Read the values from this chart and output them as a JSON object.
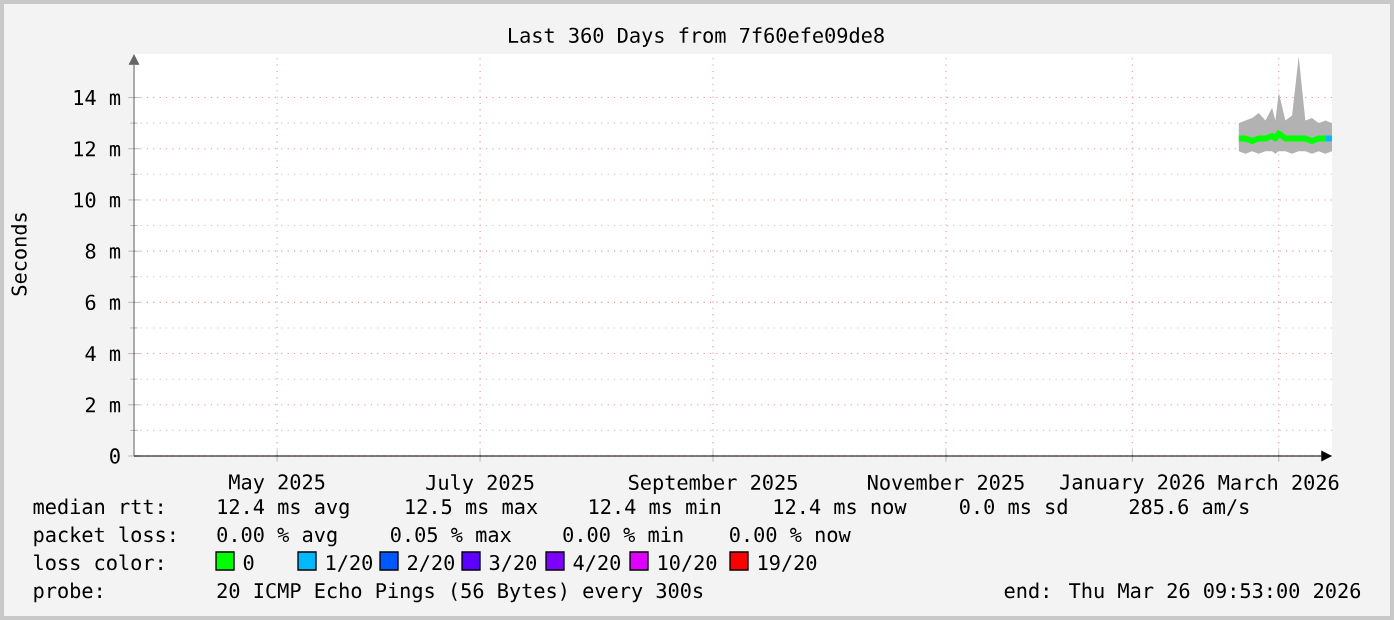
{
  "chart_data": {
    "type": "line",
    "title": "Last 360 Days from 7f60efe09de8",
    "ylabel": "Seconds",
    "x": [
      "2026-02-26",
      "2026-02-28",
      "2026-03-02",
      "2026-03-04",
      "2026-03-06",
      "2026-03-08",
      "2026-03-09",
      "2026-03-10",
      "2026-03-12",
      "2026-03-14",
      "2026-03-16",
      "2026-03-18",
      "2026-03-20",
      "2026-03-22",
      "2026-03-24",
      "2026-03-26"
    ],
    "series": [
      {
        "name": "0",
        "color": "#00ff00",
        "values": [
          12.4,
          12.4,
          12.3,
          12.4,
          12.4,
          12.5,
          12.4,
          12.6,
          12.4,
          12.4,
          12.4,
          12.4,
          12.3,
          12.4,
          12.4,
          null
        ],
        "lower": [
          11.9,
          11.8,
          11.9,
          11.8,
          11.9,
          11.9,
          11.8,
          11.9,
          11.9,
          11.8,
          11.9,
          11.9,
          11.8,
          11.9,
          11.8,
          11.9
        ],
        "upper": [
          13.0,
          13.1,
          13.2,
          13.4,
          13.1,
          13.6,
          13.1,
          14.2,
          13.1,
          13.3,
          15.6,
          13.1,
          13.2,
          13.0,
          13.1,
          13.0
        ]
      },
      {
        "name": "1/20",
        "color": "#00b8ff",
        "values": [
          null,
          null,
          null,
          null,
          null,
          null,
          null,
          null,
          null,
          null,
          null,
          null,
          null,
          null,
          12.4,
          12.4
        ]
      },
      {
        "name": "2/20",
        "color": "#0059ff",
        "values": [
          null,
          null,
          null,
          null,
          null,
          null,
          null,
          null,
          null,
          null,
          null,
          null,
          null,
          null,
          null,
          null
        ]
      },
      {
        "name": "3/20",
        "color": "#5e00ff",
        "values": [
          null,
          null,
          null,
          null,
          null,
          null,
          null,
          null,
          null,
          null,
          null,
          null,
          null,
          null,
          null,
          null
        ]
      },
      {
        "name": "4/20",
        "color": "#7e00ff",
        "values": [
          null,
          null,
          null,
          null,
          null,
          null,
          null,
          null,
          null,
          null,
          null,
          null,
          null,
          null,
          null,
          null
        ]
      },
      {
        "name": "10/20",
        "color": "#dd00ff",
        "values": [
          null,
          null,
          null,
          null,
          null,
          null,
          null,
          null,
          null,
          null,
          null,
          null,
          null,
          null,
          null,
          null
        ]
      },
      {
        "name": "19/20",
        "color": "#ff0000",
        "values": [
          null,
          null,
          null,
          null,
          null,
          null,
          null,
          null,
          null,
          null,
          null,
          null,
          null,
          null,
          null,
          null
        ]
      }
    ],
    "legend": "bottom",
    "legend_title": "loss color:",
    "xlim": [
      "2025-03-31",
      "2026-03-26"
    ],
    "xticks": [
      {
        "value": "2025-05-13",
        "label": "May 2025"
      },
      {
        "value": "2025-07-13",
        "label": "July 2025"
      },
      {
        "value": "2025-09-21",
        "label": "September 2025"
      },
      {
        "value": "2025-11-30",
        "label": "November 2025"
      },
      {
        "value": "2026-01-25",
        "label": "January 2026"
      },
      {
        "value": "2026-03-10",
        "label": "March 2026"
      }
    ],
    "ylim": [
      0,
      15.7
    ],
    "yticks": [
      0,
      {
        "value": 2,
        "label": "2 m"
      },
      {
        "value": 4,
        "label": "4 m"
      },
      {
        "value": 6,
        "label": "6 m"
      },
      {
        "value": 8,
        "label": "8 m"
      },
      {
        "value": 10,
        "label": "10 m"
      },
      {
        "value": 12,
        "label": "12 m"
      },
      {
        "value": 14,
        "label": "14 m"
      }
    ],
    "grid": true,
    "annotations": [
      "median rtt:",
      "12.4 ms avg",
      "12.5 ms max",
      "12.4 ms min",
      "12.4 ms now",
      "0.0 ms sd",
      "285.6   am/s",
      "packet loss:",
      "0.00 % avg",
      "0.05 % max",
      "0.00 % min",
      "0.00 % now",
      "probe:",
      "20 ICMP Echo Pings (56 Bytes) every 300s",
      "end: Thu Mar 26 09:53:00 2026"
    ]
  }
}
